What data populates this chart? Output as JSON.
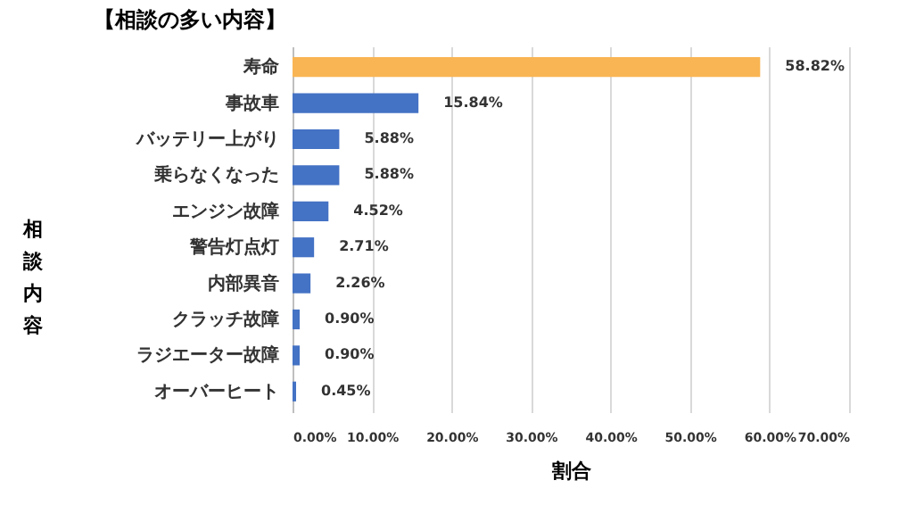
{
  "chart_data": {
    "type": "bar",
    "orientation": "horizontal",
    "title": "【相談の多い内容】",
    "xlabel": "割合",
    "ylabel": "相談内容",
    "categories": [
      "寿命",
      "事故車",
      "バッテリー上がり",
      "乗らなくなった",
      "エンジン故障",
      "警告灯点灯",
      "内部異音",
      "クラッチ故障",
      "ラジエーター故障",
      "オーバーヒート"
    ],
    "values": [
      58.82,
      15.84,
      5.88,
      5.88,
      4.52,
      2.71,
      2.26,
      0.9,
      0.9,
      0.45
    ],
    "colors": [
      "#f9b553",
      "#4472c4",
      "#4472c4",
      "#4472c4",
      "#4472c4",
      "#4472c4",
      "#4472c4",
      "#4472c4",
      "#4472c4",
      "#4472c4"
    ],
    "value_labels": [
      "58.82%",
      "15.84%",
      "5.88%",
      "5.88%",
      "4.52%",
      "2.71%",
      "2.26%",
      "0.90%",
      "0.90%",
      "0.45%"
    ],
    "xlim": [
      0,
      70
    ],
    "xticks": [
      {
        "value": 0,
        "label": "0.00%"
      },
      {
        "value": 10,
        "label": "10.00%"
      },
      {
        "value": 20,
        "label": "20.00%"
      },
      {
        "value": 30,
        "label": "30.00%"
      },
      {
        "value": 40,
        "label": "40.00%"
      },
      {
        "value": 50,
        "label": "50.00%"
      },
      {
        "value": 60,
        "label": "60.00%"
      },
      {
        "value": 70,
        "label": "70.00%"
      }
    ],
    "grid": "x"
  }
}
